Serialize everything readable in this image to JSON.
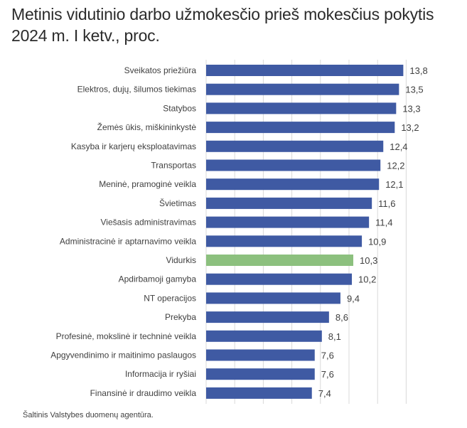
{
  "chart_data": {
    "type": "bar",
    "orientation": "horizontal",
    "title": "Metinis vidutinio darbo užmokesčio prieš mokesčius pokytis 2024 m. I ketv., proc.",
    "categories": [
      "Sveikatos priežiūra",
      "Elektros, dujų, šilumos tiekimas",
      "Statybos",
      "Žemės ūkis, miškininkystė",
      "Kasyba ir karjerų eksploatavimas",
      "Transportas",
      "Meninė, pramoginė veikla",
      "Švietimas",
      "Viešasis administravimas",
      "Administracinė ir aptarnavimo veikla",
      "Vidurkis",
      "Apdirbamoji gamyba",
      "NT operacijos",
      "Prekyba",
      "Profesinė, mokslinė ir techninė veikla",
      "Apgyvendinimo ir maitinimo paslaugos",
      "Informacija ir ryšiai",
      "Finansinė ir draudimo veikla"
    ],
    "values": [
      13.8,
      13.5,
      13.3,
      13.2,
      12.4,
      12.2,
      12.1,
      11.6,
      11.4,
      10.9,
      10.3,
      10.2,
      9.4,
      8.6,
      8.1,
      7.6,
      7.6,
      7.4
    ],
    "value_labels": [
      "13,8",
      "13,5",
      "13,3",
      "13,2",
      "12,4",
      "12,2",
      "12,1",
      "11,6",
      "11,4",
      "10,9",
      "10,3",
      "10,2",
      "9,4",
      "8,6",
      "8,1",
      "7,6",
      "7,6",
      "7,4"
    ],
    "highlight_category": "Vidurkis",
    "xlim": [
      0,
      14.5
    ],
    "grid": true,
    "xaxis_visible": false
  },
  "colors": {
    "bar": "#3f5aa3",
    "highlight": "#8cc07e",
    "grid": "#d9d9d9"
  },
  "source": "Šaltinis Valstybes duomenų agentūra."
}
